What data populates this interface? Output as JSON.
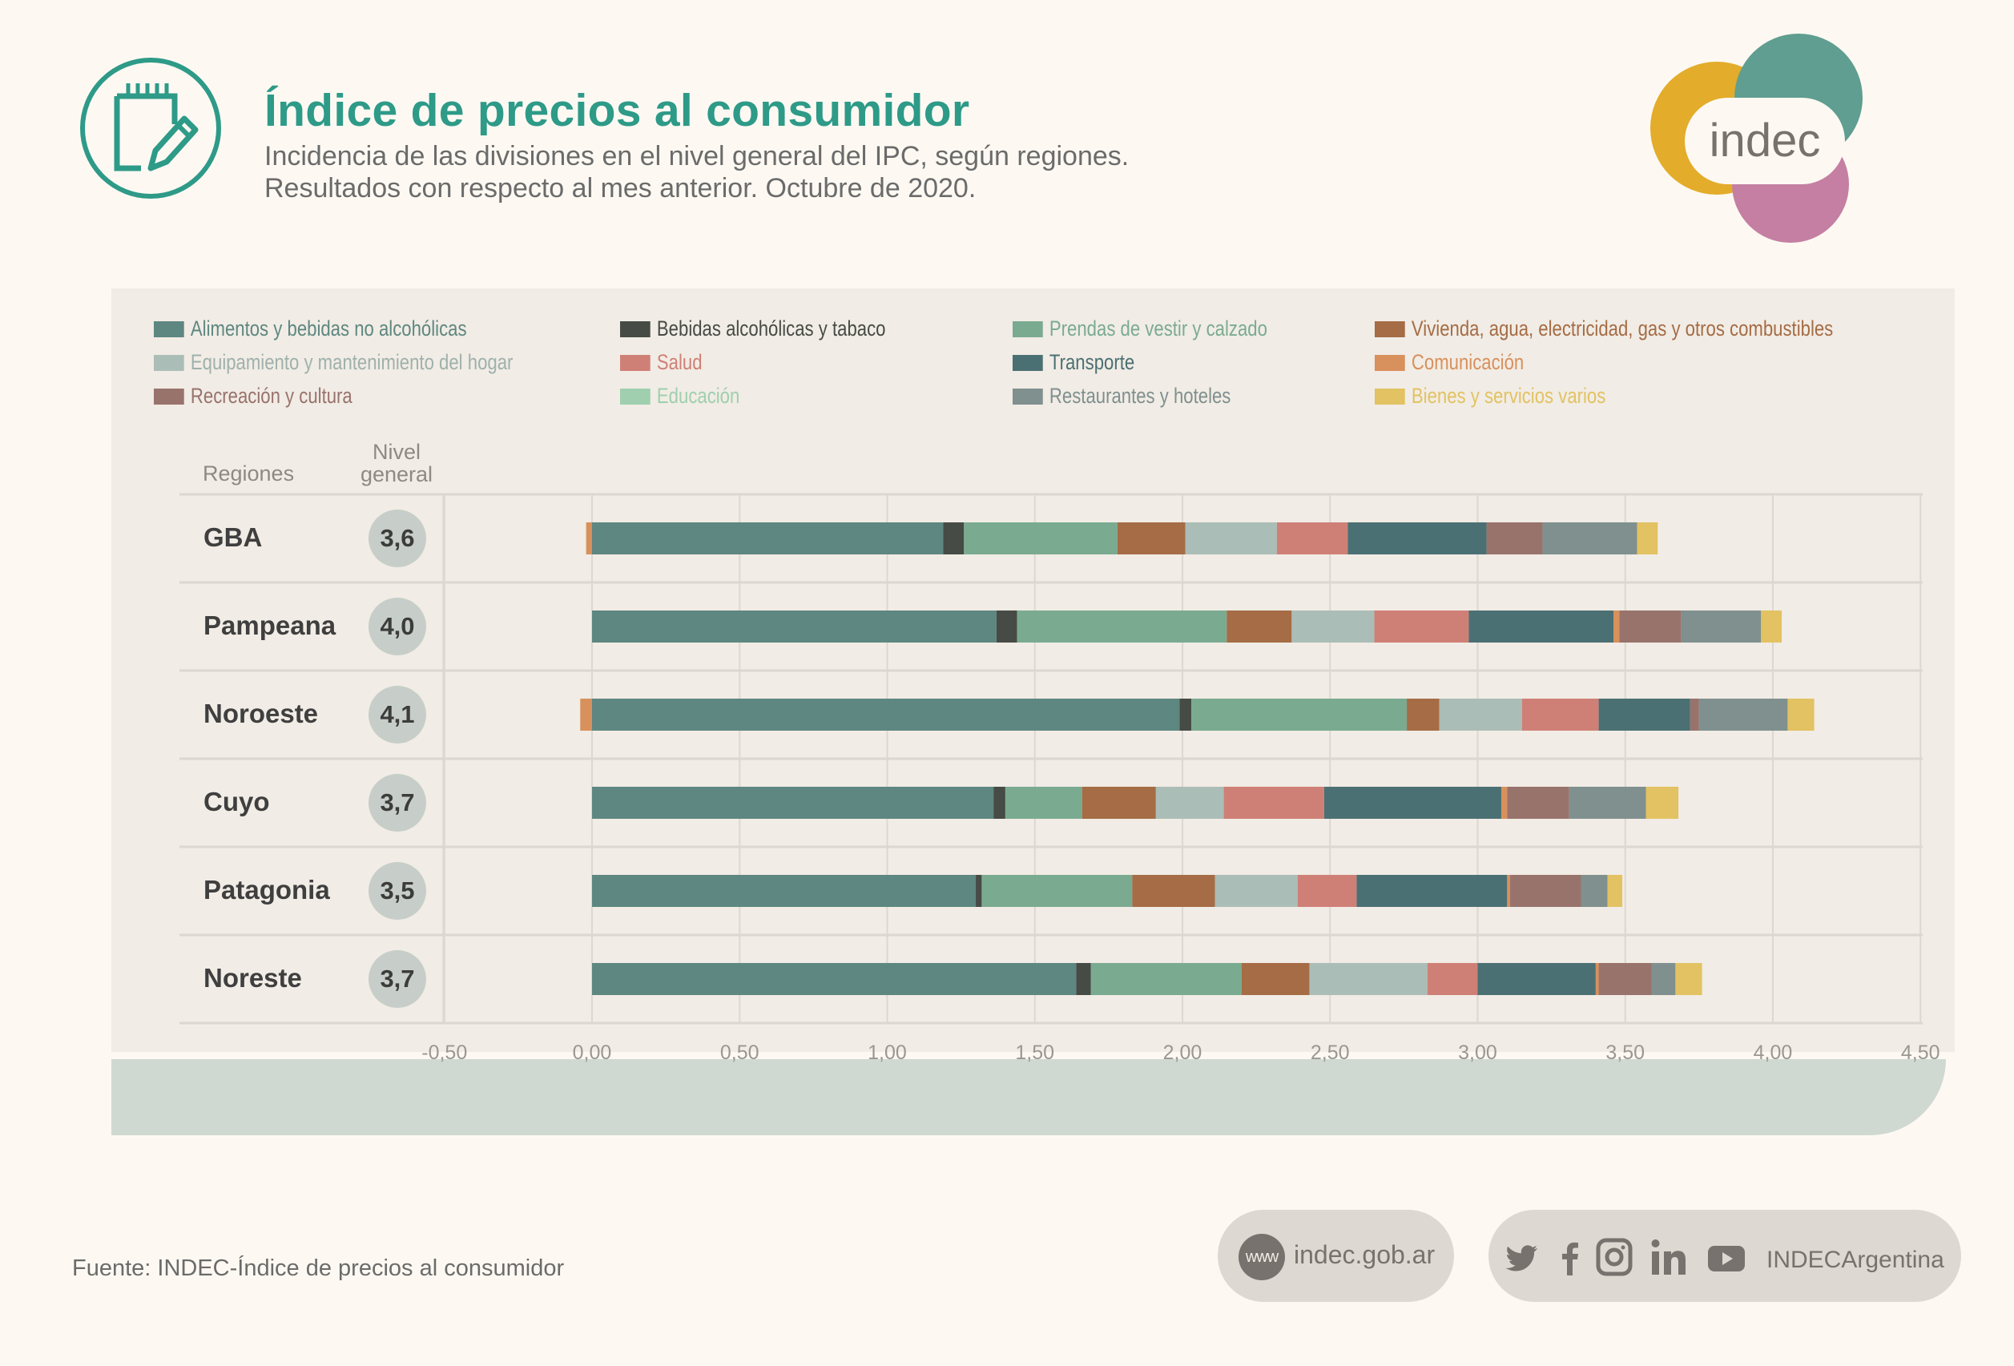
{
  "header": {
    "title": "Índice de precios al consumidor",
    "subtitle_line1": "Incidencia de las divisiones en el nivel general del IPC, según regiones.",
    "subtitle_line2": "Resultados con respecto al mes anterior. Octubre de 2020.",
    "icon": "notepad-pencil-icon",
    "logo_text": "indec"
  },
  "table_headers": {
    "regions": "Regiones",
    "level_line1": "Nivel",
    "level_line2": "general"
  },
  "colors": {
    "brand_teal": "#2e9a88",
    "logo_yellow": "#e3ac2a",
    "logo_teal": "#5f9e90",
    "logo_pink": "#c47fa2"
  },
  "chart_data": {
    "type": "bar",
    "orientation": "horizontal-stacked",
    "title": "Incidencia de las divisiones en el nivel general del IPC, según regiones",
    "xlabel": "",
    "ylabel": "Regiones",
    "xlim": [
      -0.5,
      4.5
    ],
    "xticks": [
      "-0,50",
      "0,00",
      "0,50",
      "1,00",
      "1,50",
      "2,00",
      "2,50",
      "3,00",
      "3,50",
      "4,00",
      "4,50"
    ],
    "xtick_values": [
      -0.5,
      0,
      0.5,
      1,
      1.5,
      2,
      2.5,
      3,
      3.5,
      4,
      4.5
    ],
    "grid": true,
    "legend_position": "top",
    "categories": [
      "GBA",
      "Pampeana",
      "Noroeste",
      "Cuyo",
      "Patagonia",
      "Noreste"
    ],
    "nivel_general": [
      "3,6",
      "4,0",
      "4,1",
      "3,7",
      "3,5",
      "3,7"
    ],
    "series": [
      {
        "name": "Alimentos y bebidas no alcohólicas",
        "color": "#5e8781",
        "values": [
          1.19,
          1.37,
          1.99,
          1.36,
          1.3,
          1.64
        ]
      },
      {
        "name": "Bebidas alcohólicas y tabaco",
        "color": "#464b45",
        "values": [
          0.07,
          0.07,
          0.04,
          0.04,
          0.02,
          0.05
        ]
      },
      {
        "name": "Prendas de vestir y calzado",
        "color": "#7aab90",
        "values": [
          0.52,
          0.71,
          0.73,
          0.26,
          0.51,
          0.51
        ]
      },
      {
        "name": "Vivienda, agua, electricidad, gas y otros combustibles",
        "color": "#a56c45",
        "values": [
          0.23,
          0.22,
          0.11,
          0.25,
          0.28,
          0.23
        ]
      },
      {
        "name": "Equipamiento y mantenimiento del hogar",
        "color": "#abbdb7",
        "values": [
          0.31,
          0.28,
          0.28,
          0.23,
          0.28,
          0.4
        ]
      },
      {
        "name": "Salud",
        "color": "#cf8076",
        "values": [
          0.24,
          0.32,
          0.26,
          0.34,
          0.2,
          0.17
        ]
      },
      {
        "name": "Transporte",
        "color": "#4b7074",
        "values": [
          0.47,
          0.49,
          0.31,
          0.6,
          0.51,
          0.4
        ]
      },
      {
        "name": "Comunicación",
        "color": "#d8905c",
        "values": [
          -0.02,
          0.02,
          -0.04,
          0.02,
          0.01,
          0.01
        ]
      },
      {
        "name": "Recreación y cultura",
        "color": "#98736c",
        "values": [
          0.19,
          0.21,
          0.03,
          0.21,
          0.24,
          0.18
        ]
      },
      {
        "name": "Restaurantes y hoteles",
        "color": "#7f908f",
        "values": [
          0.32,
          0.27,
          0.3,
          0.26,
          0.09,
          0.08
        ]
      },
      {
        "name": "Educación",
        "color": "#9fcfae",
        "values": [
          0.0,
          0.0,
          0.0,
          0.0,
          0.0,
          0.0
        ]
      },
      {
        "name": "Bienes y servicios varios",
        "color": "#e2c262",
        "values": [
          0.07,
          0.07,
          0.09,
          0.11,
          0.05,
          0.09
        ]
      }
    ],
    "legend_order": [
      "Alimentos y bebidas no alcohólicas",
      "Bebidas alcohólicas y tabaco",
      "Prendas de vestir y calzado",
      "Vivienda, agua, electricidad, gas y otros combustibles",
      "Equipamiento y mantenimiento del hogar",
      "Salud",
      "Transporte",
      "Comunicación",
      "Recreación y cultura",
      "Educación",
      "Restaurantes y hoteles",
      "Bienes y servicios varios"
    ],
    "legend_text_colors": {
      "Alimentos y bebidas no alcohólicas": "#5e8781",
      "Bebidas alcohólicas y tabaco": "#464b45",
      "Prendas de vestir y calzado": "#7aab90",
      "Vivienda, agua, electricidad, gas y otros combustibles": "#a56c45",
      "Equipamiento y mantenimiento del hogar": "#9fb1ac",
      "Salud": "#cf8076",
      "Transporte": "#4b7074",
      "Comunicación": "#d8905c",
      "Recreación y cultura": "#98736c",
      "Educación": "#9fcfae",
      "Restaurantes y hoteles": "#7f908f",
      "Bienes y servicios varios": "#e2c262"
    }
  },
  "footer": {
    "source": "Fuente: INDEC-Índice de precios al consumidor",
    "www_badge": "www",
    "website": "indec.gob.ar",
    "social_handle": "INDECArgentina",
    "social_icons": [
      "twitter-icon",
      "facebook-icon",
      "instagram-icon",
      "linkedin-icon",
      "youtube-icon"
    ]
  }
}
